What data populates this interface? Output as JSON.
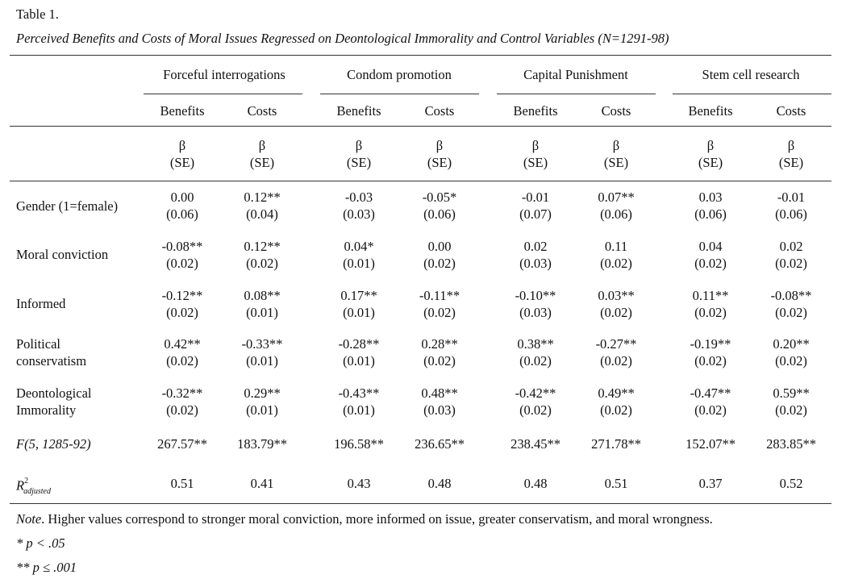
{
  "table_number": "Table 1.",
  "title": "Perceived Benefits and Costs of Moral Issues Regressed on Deontological Immorality and Control Variables (N=1291-98)",
  "groups": [
    "Forceful interrogations",
    "Condom promotion",
    "Capital Punishment",
    "Stem cell research"
  ],
  "subheaders": [
    "Benefits",
    "Costs",
    "Benefits",
    "Costs",
    "Benefits",
    "Costs",
    "Benefits",
    "Costs"
  ],
  "coef_symbol": "β",
  "se_symbol": "(SE)",
  "rows": [
    {
      "label": "Gender (1=female)",
      "values": [
        "0.00",
        "0.12**",
        "-0.03",
        "-0.05*",
        "-0.01",
        "0.07**",
        "0.03",
        "-0.01"
      ],
      "se": [
        "(0.06)",
        "(0.04)",
        "(0.03)",
        "(0.06)",
        "(0.07)",
        "(0.06)",
        "(0.06)",
        "(0.06)"
      ]
    },
    {
      "label": "Moral conviction",
      "values": [
        "-0.08**",
        "0.12**",
        "0.04*",
        "0.00",
        "0.02",
        "0.11",
        "0.04",
        "0.02"
      ],
      "se": [
        "(0.02)",
        "(0.02)",
        "(0.01)",
        "(0.02)",
        "(0.03)",
        "(0.02)",
        "(0.02)",
        "(0.02)"
      ]
    },
    {
      "label": "Informed",
      "values": [
        "-0.12**",
        "0.08**",
        "0.17**",
        "-0.11**",
        "-0.10**",
        "0.03**",
        "0.11**",
        "-0.08**"
      ],
      "se": [
        "(0.02)",
        "(0.01)",
        "(0.01)",
        "(0.02)",
        "(0.03)",
        "(0.02)",
        "(0.02)",
        "(0.02)"
      ]
    },
    {
      "label1": "Political",
      "label2": "conservatism",
      "values": [
        "0.42**",
        "-0.33**",
        "-0.28**",
        "0.28**",
        "0.38**",
        "-0.27**",
        "-0.19**",
        "0.20**"
      ],
      "se": [
        "(0.02)",
        "(0.01)",
        "(0.01)",
        "(0.02)",
        "(0.02)",
        "(0.02)",
        "(0.02)",
        "(0.02)"
      ]
    },
    {
      "label1": "Deontological",
      "label2": "Immorality",
      "values": [
        "-0.32**",
        "0.29**",
        "-0.43**",
        "0.48**",
        "-0.42**",
        "0.49**",
        "-0.47**",
        "0.59**"
      ],
      "se": [
        "(0.02)",
        "(0.01)",
        "(0.01)",
        "(0.03)",
        "(0.02)",
        "(0.02)",
        "(0.02)",
        "(0.02)"
      ]
    }
  ],
  "f_label": "F(5, 1285-92)",
  "f_values": [
    "267.57**",
    "183.79**",
    "196.58**",
    "236.65**",
    "238.45**",
    "271.78**",
    "152.07**",
    "283.85**"
  ],
  "r2_label_main": "R",
  "r2_label_sup": "2",
  "r2_label_sub": "adjusted",
  "r2_values": [
    "0.51",
    "0.41",
    "0.43",
    "0.48",
    "0.48",
    "0.51",
    "0.37",
    "0.52"
  ],
  "note_label": "Note",
  "note_text": ". Higher values correspond to stronger moral conviction, more informed on issue, greater conservatism, and moral wrongness.",
  "sig1": "* p < .05",
  "sig2": "** p ≤ .001"
}
